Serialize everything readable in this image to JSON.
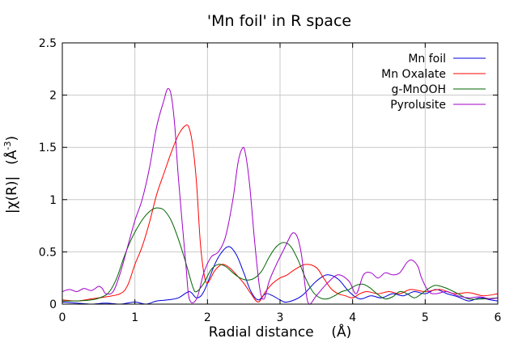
{
  "chart_data": {
    "type": "line",
    "title": "'Mn foil' in R space",
    "xlabel": "Radial distance    (Å)",
    "ylabel_main": "|χ(R)|",
    "ylabel_unit": "(Å",
    "ylabel_exp": "-3",
    "ylabel_close": ")",
    "xlim": [
      0,
      6
    ],
    "ylim": [
      0,
      2.5
    ],
    "xticks": [
      "0",
      "1",
      "2",
      "3",
      "4",
      "5",
      "6"
    ],
    "yticks": [
      "0",
      "0.5",
      "1",
      "1.5",
      "2",
      "2.5"
    ],
    "grid": true,
    "legend_position": "top-right",
    "series": [
      {
        "name": "Mn foil",
        "color": "#0000dd",
        "points": [
          [
            0,
            0.02
          ],
          [
            0.2,
            0.01
          ],
          [
            0.4,
            0.0
          ],
          [
            0.6,
            0.01
          ],
          [
            0.8,
            0.0
          ],
          [
            1.0,
            0.02
          ],
          [
            1.15,
            0.0
          ],
          [
            1.3,
            0.03
          ],
          [
            1.45,
            0.04
          ],
          [
            1.6,
            0.06
          ],
          [
            1.75,
            0.12
          ],
          [
            1.85,
            0.06
          ],
          [
            1.95,
            0.12
          ],
          [
            2.1,
            0.38
          ],
          [
            2.2,
            0.5
          ],
          [
            2.3,
            0.55
          ],
          [
            2.4,
            0.47
          ],
          [
            2.5,
            0.3
          ],
          [
            2.6,
            0.12
          ],
          [
            2.7,
            0.04
          ],
          [
            2.8,
            0.1
          ],
          [
            2.9,
            0.08
          ],
          [
            3.0,
            0.04
          ],
          [
            3.1,
            0.02
          ],
          [
            3.3,
            0.08
          ],
          [
            3.5,
            0.22
          ],
          [
            3.65,
            0.28
          ],
          [
            3.8,
            0.24
          ],
          [
            3.95,
            0.12
          ],
          [
            4.1,
            0.05
          ],
          [
            4.25,
            0.08
          ],
          [
            4.4,
            0.06
          ],
          [
            4.55,
            0.1
          ],
          [
            4.7,
            0.08
          ],
          [
            4.85,
            0.12
          ],
          [
            5.0,
            0.1
          ],
          [
            5.15,
            0.14
          ],
          [
            5.3,
            0.1
          ],
          [
            5.45,
            0.07
          ],
          [
            5.6,
            0.03
          ],
          [
            5.75,
            0.06
          ],
          [
            5.9,
            0.04
          ],
          [
            6.0,
            0.03
          ]
        ]
      },
      {
        "name": "Mn Oxalate",
        "color": "#ff0000",
        "points": [
          [
            0,
            0.04
          ],
          [
            0.2,
            0.03
          ],
          [
            0.4,
            0.05
          ],
          [
            0.6,
            0.07
          ],
          [
            0.8,
            0.1
          ],
          [
            0.9,
            0.18
          ],
          [
            1.0,
            0.38
          ],
          [
            1.1,
            0.55
          ],
          [
            1.2,
            0.78
          ],
          [
            1.3,
            1.05
          ],
          [
            1.4,
            1.25
          ],
          [
            1.5,
            1.45
          ],
          [
            1.6,
            1.62
          ],
          [
            1.7,
            1.71
          ],
          [
            1.75,
            1.68
          ],
          [
            1.8,
            1.5
          ],
          [
            1.85,
            1.15
          ],
          [
            1.9,
            0.6
          ],
          [
            1.95,
            0.3
          ],
          [
            2.0,
            0.2
          ],
          [
            2.1,
            0.32
          ],
          [
            2.2,
            0.38
          ],
          [
            2.3,
            0.35
          ],
          [
            2.4,
            0.28
          ],
          [
            2.5,
            0.2
          ],
          [
            2.6,
            0.1
          ],
          [
            2.7,
            0.02
          ],
          [
            2.8,
            0.12
          ],
          [
            2.9,
            0.2
          ],
          [
            3.0,
            0.25
          ],
          [
            3.1,
            0.28
          ],
          [
            3.2,
            0.33
          ],
          [
            3.35,
            0.38
          ],
          [
            3.5,
            0.35
          ],
          [
            3.6,
            0.25
          ],
          [
            3.7,
            0.15
          ],
          [
            3.8,
            0.1
          ],
          [
            3.9,
            0.08
          ],
          [
            4.0,
            0.06
          ],
          [
            4.1,
            0.1
          ],
          [
            4.2,
            0.12
          ],
          [
            4.35,
            0.1
          ],
          [
            4.5,
            0.12
          ],
          [
            4.65,
            0.1
          ],
          [
            4.8,
            0.14
          ],
          [
            5.0,
            0.12
          ],
          [
            5.2,
            0.14
          ],
          [
            5.4,
            0.1
          ],
          [
            5.6,
            0.11
          ],
          [
            5.8,
            0.08
          ],
          [
            6.0,
            0.1
          ]
        ]
      },
      {
        "name": "g-MnOOH",
        "color": "#006400",
        "points": [
          [
            0,
            0.03
          ],
          [
            0.2,
            0.03
          ],
          [
            0.4,
            0.04
          ],
          [
            0.55,
            0.07
          ],
          [
            0.65,
            0.12
          ],
          [
            0.75,
            0.25
          ],
          [
            0.85,
            0.45
          ],
          [
            0.95,
            0.62
          ],
          [
            1.05,
            0.75
          ],
          [
            1.15,
            0.85
          ],
          [
            1.25,
            0.91
          ],
          [
            1.32,
            0.92
          ],
          [
            1.4,
            0.9
          ],
          [
            1.5,
            0.8
          ],
          [
            1.6,
            0.62
          ],
          [
            1.7,
            0.4
          ],
          [
            1.8,
            0.16
          ],
          [
            1.85,
            0.12
          ],
          [
            1.95,
            0.2
          ],
          [
            2.05,
            0.33
          ],
          [
            2.15,
            0.38
          ],
          [
            2.25,
            0.36
          ],
          [
            2.35,
            0.3
          ],
          [
            2.45,
            0.25
          ],
          [
            2.55,
            0.23
          ],
          [
            2.65,
            0.25
          ],
          [
            2.75,
            0.32
          ],
          [
            2.85,
            0.45
          ],
          [
            2.95,
            0.55
          ],
          [
            3.05,
            0.59
          ],
          [
            3.15,
            0.55
          ],
          [
            3.25,
            0.42
          ],
          [
            3.35,
            0.25
          ],
          [
            3.45,
            0.12
          ],
          [
            3.55,
            0.06
          ],
          [
            3.65,
            0.05
          ],
          [
            3.75,
            0.08
          ],
          [
            3.85,
            0.12
          ],
          [
            3.95,
            0.14
          ],
          [
            4.05,
            0.18
          ],
          [
            4.15,
            0.19
          ],
          [
            4.25,
            0.15
          ],
          [
            4.35,
            0.09
          ],
          [
            4.45,
            0.05
          ],
          [
            4.55,
            0.07
          ],
          [
            4.65,
            0.12
          ],
          [
            4.75,
            0.1
          ],
          [
            4.85,
            0.06
          ],
          [
            4.95,
            0.1
          ],
          [
            5.05,
            0.15
          ],
          [
            5.15,
            0.18
          ],
          [
            5.3,
            0.15
          ],
          [
            5.45,
            0.1
          ],
          [
            5.6,
            0.05
          ],
          [
            5.8,
            0.05
          ],
          [
            6.0,
            0.06
          ]
        ]
      },
      {
        "name": "Pyrolusite",
        "color": "#a000c8",
        "points": [
          [
            0,
            0.12
          ],
          [
            0.1,
            0.14
          ],
          [
            0.2,
            0.12
          ],
          [
            0.3,
            0.15
          ],
          [
            0.4,
            0.13
          ],
          [
            0.5,
            0.17
          ],
          [
            0.55,
            0.15
          ],
          [
            0.6,
            0.1
          ],
          [
            0.7,
            0.12
          ],
          [
            0.8,
            0.3
          ],
          [
            0.9,
            0.55
          ],
          [
            1.0,
            0.8
          ],
          [
            1.1,
            1.0
          ],
          [
            1.2,
            1.3
          ],
          [
            1.3,
            1.7
          ],
          [
            1.4,
            1.95
          ],
          [
            1.45,
            2.06
          ],
          [
            1.5,
            2.0
          ],
          [
            1.55,
            1.7
          ],
          [
            1.6,
            1.2
          ],
          [
            1.7,
            0.4
          ],
          [
            1.75,
            0.05
          ],
          [
            1.85,
            0.05
          ],
          [
            1.95,
            0.3
          ],
          [
            2.05,
            0.45
          ],
          [
            2.15,
            0.5
          ],
          [
            2.25,
            0.65
          ],
          [
            2.35,
            1.0
          ],
          [
            2.42,
            1.35
          ],
          [
            2.48,
            1.49
          ],
          [
            2.52,
            1.45
          ],
          [
            2.58,
            1.15
          ],
          [
            2.65,
            0.6
          ],
          [
            2.72,
            0.15
          ],
          [
            2.78,
            0.05
          ],
          [
            2.85,
            0.22
          ],
          [
            2.95,
            0.38
          ],
          [
            3.05,
            0.52
          ],
          [
            3.15,
            0.66
          ],
          [
            3.2,
            0.68
          ],
          [
            3.25,
            0.62
          ],
          [
            3.3,
            0.45
          ],
          [
            3.35,
            0.15
          ],
          [
            3.4,
            0.0
          ],
          [
            3.5,
            0.08
          ],
          [
            3.65,
            0.2
          ],
          [
            3.8,
            0.28
          ],
          [
            3.95,
            0.22
          ],
          [
            4.05,
            0.1
          ],
          [
            4.15,
            0.28
          ],
          [
            4.25,
            0.3
          ],
          [
            4.35,
            0.25
          ],
          [
            4.45,
            0.3
          ],
          [
            4.55,
            0.28
          ],
          [
            4.65,
            0.3
          ],
          [
            4.75,
            0.4
          ],
          [
            4.82,
            0.42
          ],
          [
            4.9,
            0.36
          ],
          [
            4.95,
            0.25
          ],
          [
            5.05,
            0.12
          ],
          [
            5.15,
            0.1
          ],
          [
            5.3,
            0.12
          ],
          [
            5.45,
            0.08
          ],
          [
            5.6,
            0.06
          ],
          [
            5.75,
            0.07
          ],
          [
            5.9,
            0.05
          ],
          [
            6.0,
            0.06
          ]
        ]
      }
    ]
  }
}
